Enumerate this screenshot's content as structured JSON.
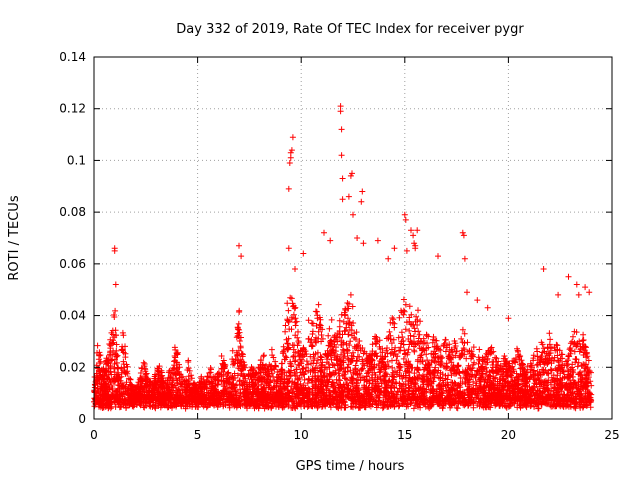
{
  "chart_data": {
    "type": "scatter",
    "title": "Day 332 of 2019, Rate Of TEC Index for receiver pygr",
    "xlabel": "GPS time / hours",
    "ylabel": "ROTI / TECUs",
    "xlim": [
      0,
      25
    ],
    "ylim": [
      0,
      0.14
    ],
    "x_ticks": [
      0,
      5,
      10,
      15,
      20,
      25
    ],
    "x_tick_labels": [
      "0",
      "5",
      "10",
      "15",
      "20",
      "25"
    ],
    "y_ticks": [
      0,
      0.02,
      0.04,
      0.06,
      0.08,
      0.1,
      0.12,
      0.14
    ],
    "y_tick_labels": [
      "0",
      "0.02",
      "0.04",
      "0.06",
      "0.08",
      "0.1",
      "0.12",
      "0.14"
    ],
    "grid": true,
    "marker": "+",
    "color": "#ff0000",
    "series": [
      {
        "x": [
          0.0,
          0.2,
          0.4,
          0.6,
          0.8,
          1.0,
          1.2,
          1.4,
          1.6,
          1.8,
          2.0,
          2.2,
          2.4,
          2.6,
          2.8,
          3.0,
          3.2,
          3.4,
          3.6,
          3.8,
          4.0,
          4.2,
          4.4,
          4.6,
          4.8,
          5.0,
          5.2,
          5.4,
          5.6,
          5.8,
          6.0,
          6.2,
          6.4,
          6.6,
          6.8,
          7.0,
          7.2,
          7.4,
          7.6,
          7.8,
          8.0,
          8.2,
          8.4,
          8.6,
          8.8,
          9.0,
          9.2,
          9.4,
          9.6,
          9.8,
          10.0,
          10.2,
          10.4,
          10.6,
          10.8,
          11.0,
          11.2,
          11.4,
          11.6,
          11.8,
          12.0,
          12.2,
          12.4,
          12.6,
          12.8,
          13.0,
          13.2,
          13.4,
          13.6,
          13.8,
          14.0,
          14.2,
          14.4,
          14.6,
          14.8,
          15.0,
          15.2,
          15.4,
          15.6,
          15.8,
          16.0,
          16.2,
          16.4,
          16.6,
          16.8,
          17.0,
          17.2,
          17.4,
          17.6,
          17.8,
          18.0,
          18.2,
          18.4,
          18.6,
          18.8,
          19.0,
          19.2,
          19.4,
          19.6,
          19.8,
          20.0,
          20.2,
          20.4,
          20.6,
          20.8,
          21.0,
          21.2,
          21.4,
          21.6,
          21.8,
          22.0,
          22.2,
          22.4,
          22.6,
          22.8,
          23.0,
          23.2,
          23.4,
          23.6,
          23.8,
          24.0
        ],
        "y": [
          0.016,
          0.033,
          0.018,
          0.024,
          0.032,
          0.045,
          0.016,
          0.036,
          0.021,
          0.014,
          0.012,
          0.015,
          0.024,
          0.018,
          0.014,
          0.019,
          0.022,
          0.013,
          0.018,
          0.024,
          0.031,
          0.021,
          0.014,
          0.026,
          0.015,
          0.012,
          0.017,
          0.014,
          0.022,
          0.016,
          0.018,
          0.026,
          0.019,
          0.031,
          0.022,
          0.045,
          0.024,
          0.016,
          0.021,
          0.018,
          0.022,
          0.026,
          0.019,
          0.028,
          0.021,
          0.018,
          0.034,
          0.052,
          0.046,
          0.041,
          0.025,
          0.031,
          0.044,
          0.036,
          0.048,
          0.035,
          0.028,
          0.043,
          0.033,
          0.039,
          0.041,
          0.046,
          0.049,
          0.036,
          0.031,
          0.028,
          0.025,
          0.029,
          0.034,
          0.031,
          0.026,
          0.034,
          0.041,
          0.036,
          0.043,
          0.048,
          0.046,
          0.038,
          0.044,
          0.036,
          0.032,
          0.038,
          0.034,
          0.029,
          0.026,
          0.034,
          0.028,
          0.031,
          0.026,
          0.036,
          0.031,
          0.026,
          0.033,
          0.028,
          0.024,
          0.026,
          0.029,
          0.024,
          0.021,
          0.025,
          0.021,
          0.024,
          0.028,
          0.024,
          0.019,
          0.022,
          0.025,
          0.028,
          0.031,
          0.026,
          0.034,
          0.028,
          0.031,
          0.025,
          0.023,
          0.029,
          0.036,
          0.031,
          0.033,
          0.026,
          0.021
        ]
      }
    ],
    "outliers_x": [
      1.0,
      1.0,
      1.05,
      7.0,
      7.1,
      9.4,
      9.45,
      9.5,
      9.5,
      9.55,
      9.6,
      9.4,
      9.7,
      10.1,
      11.1,
      11.4,
      11.9,
      11.9,
      11.95,
      11.95,
      12.0,
      12.0,
      12.3,
      12.4,
      12.45,
      12.5,
      12.7,
      12.9,
      12.95,
      13.0,
      13.7,
      14.2,
      14.5,
      15.0,
      15.05,
      15.1,
      15.3,
      15.4,
      15.45,
      15.5,
      15.5,
      15.6,
      16.6,
      17.8,
      17.85,
      17.9,
      18.0,
      18.5,
      19.0,
      20.0,
      21.7,
      22.4,
      22.9,
      23.3,
      23.4,
      23.7,
      23.9
    ],
    "outliers_y": [
      0.066,
      0.065,
      0.052,
      0.067,
      0.063,
      0.089,
      0.099,
      0.101,
      0.103,
      0.104,
      0.109,
      0.066,
      0.058,
      0.064,
      0.072,
      0.069,
      0.121,
      0.119,
      0.112,
      0.102,
      0.093,
      0.085,
      0.086,
      0.094,
      0.095,
      0.079,
      0.07,
      0.084,
      0.088,
      0.068,
      0.069,
      0.062,
      0.066,
      0.079,
      0.077,
      0.065,
      0.073,
      0.071,
      0.068,
      0.067,
      0.066,
      0.073,
      0.063,
      0.072,
      0.071,
      0.062,
      0.049,
      0.046,
      0.043,
      0.039,
      0.058,
      0.048,
      0.055,
      0.052,
      0.048,
      0.051,
      0.049
    ]
  }
}
